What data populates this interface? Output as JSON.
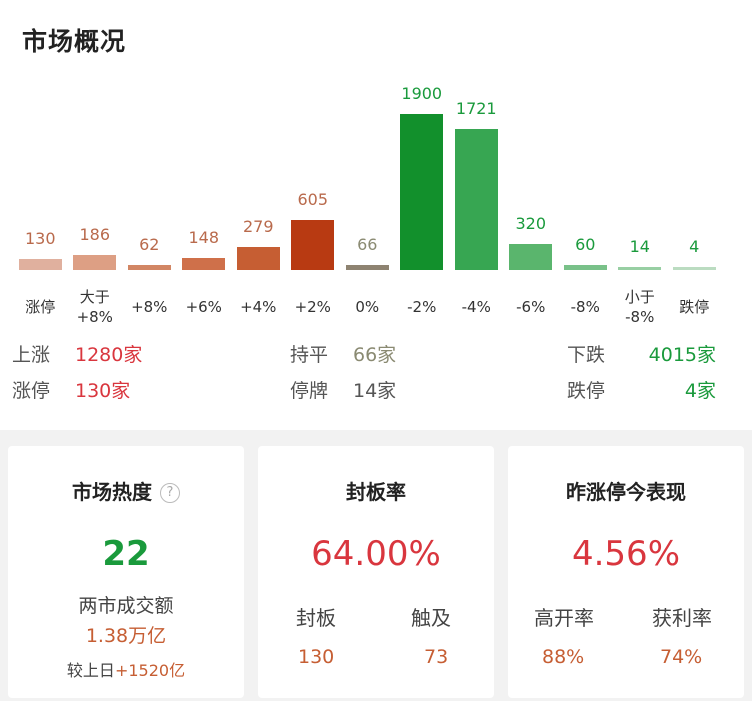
{
  "overview": {
    "title": "市场概况"
  },
  "chart_data": {
    "type": "bar",
    "categories": [
      "涨停",
      "大于\n+8%",
      "+8%",
      "+6%",
      "+4%",
      "+2%",
      "0%",
      "-2%",
      "-4%",
      "-6%",
      "-8%",
      "小于\n-8%",
      "跌停"
    ],
    "values": [
      130,
      186,
      62,
      148,
      279,
      605,
      66,
      1900,
      1721,
      320,
      60,
      14,
      4
    ],
    "bar_colors": [
      "#e0b09e",
      "#dd9f84",
      "#d28664",
      "#cf704a",
      "#c65e33",
      "#b83a12",
      "#8e8371",
      "#12902c",
      "#37a652",
      "#5ab56d",
      "#79c189",
      "#98cfa3",
      "#bbdcc1"
    ],
    "value_colors": [
      "#b96a4c",
      "#b96a4c",
      "#b96a4c",
      "#b96a4c",
      "#b96a4c",
      "#b96a4c",
      "#8a8a72",
      "#1a9a3c",
      "#1a9a3c",
      "#1a9a3c",
      "#1a9a3c",
      "#1a9a3c",
      "#1a9a3c"
    ],
    "title": "",
    "xlabel": "",
    "ylabel": "",
    "ylim": [
      0,
      1900
    ]
  },
  "stats": {
    "rise_label": "上涨",
    "rise_value": "1280家",
    "flat_label": "持平",
    "flat_value": "66家",
    "fall_label": "下跌",
    "fall_value": "4015家",
    "limit_up_label": "涨停",
    "limit_up_value": "130家",
    "suspended_label": "停牌",
    "suspended_value": "14家",
    "limit_down_label": "跌停",
    "limit_down_value": "4家"
  },
  "heat_card": {
    "title": "市场热度",
    "help_icon": "?",
    "score": "22",
    "turnover_label": "两市成交额",
    "turnover_value": "1.38万亿",
    "compare_label": "较上日",
    "compare_value": "+1520亿"
  },
  "seal_card": {
    "title": "封板率",
    "rate": "64.00%",
    "sealed_label": "封板",
    "sealed_value": "130",
    "touched_label": "触及",
    "touched_value": "73"
  },
  "yesterday_card": {
    "title": "昨涨停今表现",
    "rate": "4.56%",
    "high_open_label": "高开率",
    "high_open_value": "88%",
    "profit_label": "获利率",
    "profit_value": "74%"
  }
}
